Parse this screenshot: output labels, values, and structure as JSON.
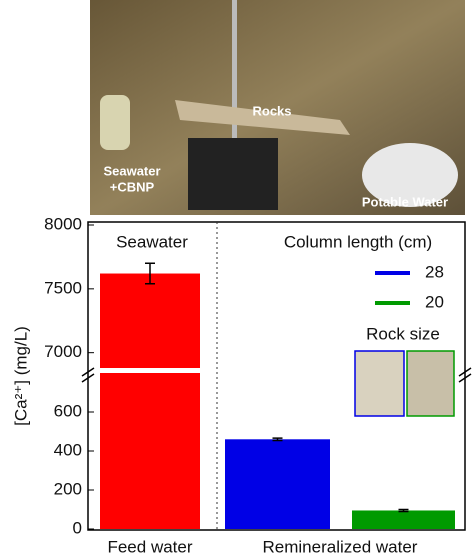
{
  "photo_labels": {
    "rocks": "Rocks",
    "seawater": [
      "Seawater",
      "+CBNP"
    ],
    "potable": "Potable Water"
  },
  "chart_data": {
    "type": "bar",
    "y_label": "[Ca²⁺] (mg/L)",
    "categories": [
      "Feed water",
      "Remineralized water"
    ],
    "series": [
      {
        "name": "Seawater",
        "color": "#ff0000",
        "values": [
          7620,
          null
        ],
        "errors": [
          80,
          null
        ]
      },
      {
        "name": "28",
        "color": "#0000e6",
        "values": [
          null,
          460
        ],
        "errors": [
          null,
          6
        ]
      },
      {
        "name": "20",
        "color": "#009a00",
        "values": [
          null,
          95
        ],
        "errors": [
          null,
          5
        ]
      }
    ],
    "legend_title": "Column length (cm)",
    "inset_title": "Rock size",
    "ylim": [
      0,
      8000
    ],
    "y_break": [
      800,
      6880
    ],
    "yticks": [
      0,
      200,
      400,
      600,
      7000,
      7500,
      8000
    ]
  }
}
